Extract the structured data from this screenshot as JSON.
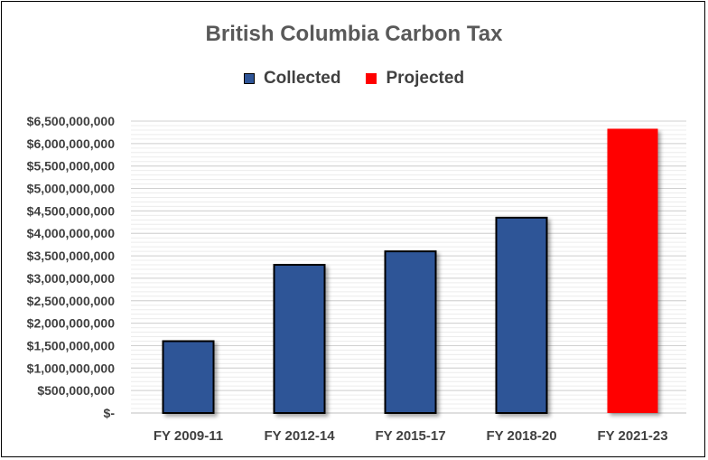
{
  "chart_data": {
    "type": "bar",
    "title": "British Columbia Carbon Tax",
    "xlabel": "",
    "ylabel": "",
    "categories": [
      "FY 2009-11",
      "FY 2012-14",
      "FY 2015-17",
      "FY 2018-20",
      "FY 2021-23"
    ],
    "series": [
      {
        "name": "Collected",
        "color": "#2F5597",
        "values": [
          1600000000,
          3300000000,
          3600000000,
          4350000000,
          null
        ]
      },
      {
        "name": "Projected",
        "color": "#FF0000",
        "values": [
          null,
          null,
          null,
          null,
          6330000000
        ]
      }
    ],
    "ylim": [
      0,
      6500000000
    ],
    "y_tick_labels": [
      "$-",
      "$500,000,000",
      "$1,000,000,000",
      "$1,500,000,000",
      "$2,000,000,000",
      "$2,500,000,000",
      "$3,000,000,000",
      "$3,500,000,000",
      "$4,000,000,000",
      "$4,500,000,000",
      "$5,000,000,000",
      "$5,500,000,000",
      "$6,000,000,000",
      "$6,500,000,000"
    ],
    "grid": true,
    "legend_position": "top"
  }
}
